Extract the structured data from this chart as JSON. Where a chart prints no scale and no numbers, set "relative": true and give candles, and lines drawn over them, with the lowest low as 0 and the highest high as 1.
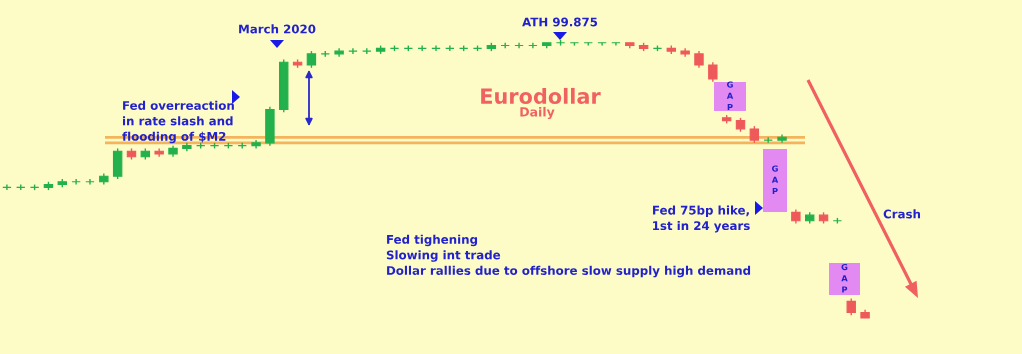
{
  "chart_data": {
    "type": "candlestick",
    "title": "Eurodollar",
    "subtitle": "Daily",
    "relative": true,
    "categories": [
      null,
      null,
      null,
      null,
      null,
      null,
      null,
      null,
      null,
      null,
      null,
      null,
      null,
      null,
      null,
      null,
      null,
      null,
      null,
      null,
      null,
      null,
      null,
      null,
      null,
      null,
      null,
      null,
      null,
      null,
      null,
      null,
      null,
      null,
      null,
      null,
      null,
      null,
      null,
      null,
      null,
      null,
      null,
      null,
      null,
      null,
      null,
      null,
      null,
      null,
      null,
      null,
      null,
      null,
      null,
      null,
      null,
      null,
      null,
      null,
      null,
      null,
      null
    ],
    "colors": [
      "#22b14c",
      "#22b14c",
      "#22b14c",
      "#22b14c",
      "#22b14c",
      "#22b14c",
      "#22b14c",
      "#22b14c",
      "#22b14c",
      "#ee5a5a",
      "#22b14c",
      "#ee5a5a",
      "#22b14c",
      "#22b14c",
      "#22b14c",
      "#22b14c",
      "#22b14c",
      "#22b14c",
      "#22b14c",
      "#22b14c",
      "#22b14c",
      "#ee5a5a",
      "#22b14c",
      "#22b14c",
      "#22b14c",
      "#22b14c",
      "#22b14c",
      "#22b14c",
      "#22b14c",
      "#22b14c",
      "#22b14c",
      "#22b14c",
      "#22b14c",
      "#22b14c",
      "#22b14c",
      "#22b14c",
      "#22b14c",
      "#22b14c",
      "#22b14c",
      "#22b14c",
      "#22b14c",
      "#22b14c",
      "#22b14c",
      "#22b14c",
      "#22b14c",
      "#ee5a5a",
      "#ee5a5a",
      "#22b14c",
      "#ee5a5a",
      "#ee5a5a",
      "#ee5a5a",
      "#ee5a5a",
      "#ee5a5a",
      "#ee5a5a",
      "#ee5a5a",
      "#22b14c",
      "#22b14c",
      "#ee5a5a",
      "#22b14c",
      "#ee5a5a",
      "#22b14c",
      "#ee5a5a",
      "#ee5a5a"
    ],
    "ohlc": [
      [
        0.47,
        0.48,
        0.46,
        0.47
      ],
      [
        0.47,
        0.48,
        0.46,
        0.47
      ],
      [
        0.47,
        0.48,
        0.46,
        0.47
      ],
      [
        0.47,
        0.49,
        0.46,
        0.48
      ],
      [
        0.48,
        0.5,
        0.47,
        0.49
      ],
      [
        0.49,
        0.5,
        0.48,
        0.49
      ],
      [
        0.49,
        0.5,
        0.48,
        0.49
      ],
      [
        0.49,
        0.52,
        0.48,
        0.51
      ],
      [
        0.51,
        0.61,
        0.5,
        0.6
      ],
      [
        0.6,
        0.61,
        0.57,
        0.58
      ],
      [
        0.58,
        0.61,
        0.57,
        0.6
      ],
      [
        0.6,
        0.61,
        0.58,
        0.59
      ],
      [
        0.59,
        0.62,
        0.58,
        0.61
      ],
      [
        0.61,
        0.63,
        0.6,
        0.62
      ],
      [
        0.62,
        0.63,
        0.61,
        0.62
      ],
      [
        0.62,
        0.63,
        0.61,
        0.62
      ],
      [
        0.62,
        0.63,
        0.61,
        0.62
      ],
      [
        0.62,
        0.63,
        0.61,
        0.62
      ],
      [
        0.62,
        0.64,
        0.61,
        0.63
      ],
      [
        0.63,
        0.76,
        0.62,
        0.75
      ],
      [
        0.75,
        0.93,
        0.74,
        0.92
      ],
      [
        0.92,
        0.93,
        0.9,
        0.91
      ],
      [
        0.91,
        0.96,
        0.9,
        0.95
      ],
      [
        0.95,
        0.96,
        0.94,
        0.95
      ],
      [
        0.95,
        0.97,
        0.94,
        0.96
      ],
      [
        0.96,
        0.97,
        0.95,
        0.96
      ],
      [
        0.96,
        0.97,
        0.95,
        0.96
      ],
      [
        0.96,
        0.98,
        0.95,
        0.97
      ],
      [
        0.97,
        0.98,
        0.96,
        0.97
      ],
      [
        0.97,
        0.98,
        0.96,
        0.97
      ],
      [
        0.97,
        0.98,
        0.96,
        0.97
      ],
      [
        0.97,
        0.98,
        0.96,
        0.97
      ],
      [
        0.97,
        0.98,
        0.96,
        0.97
      ],
      [
        0.97,
        0.98,
        0.96,
        0.97
      ],
      [
        0.97,
        0.98,
        0.96,
        0.97
      ],
      [
        0.97,
        0.99,
        0.96,
        0.98
      ],
      [
        0.98,
        0.99,
        0.97,
        0.98
      ],
      [
        0.98,
        0.99,
        0.97,
        0.98
      ],
      [
        0.98,
        0.99,
        0.97,
        0.98
      ],
      [
        0.98,
        0.99,
        0.97,
        0.99
      ],
      [
        0.99,
        1.0,
        0.98,
        0.99
      ],
      [
        0.99,
        0.99,
        0.98,
        0.99
      ],
      [
        0.99,
        0.99,
        0.98,
        0.99
      ],
      [
        0.99,
        0.99,
        0.98,
        0.99
      ],
      [
        0.99,
        0.99,
        0.98,
        0.99
      ],
      [
        0.99,
        0.99,
        0.97,
        0.98
      ],
      [
        0.98,
        0.99,
        0.96,
        0.97
      ],
      [
        0.97,
        0.98,
        0.96,
        0.97
      ],
      [
        0.97,
        0.98,
        0.95,
        0.96
      ],
      [
        0.96,
        0.97,
        0.94,
        0.95
      ],
      [
        0.95,
        0.96,
        0.9,
        0.91
      ],
      [
        0.91,
        0.92,
        0.85,
        0.86
      ],
      [
        0.72,
        0.73,
        0.7,
        0.71
      ],
      [
        0.71,
        0.72,
        0.67,
        0.68
      ],
      [
        0.68,
        0.69,
        0.63,
        0.64
      ],
      [
        0.64,
        0.65,
        0.63,
        0.64
      ],
      [
        0.64,
        0.66,
        0.63,
        0.65
      ],
      [
        0.38,
        0.39,
        0.34,
        0.35
      ],
      [
        0.35,
        0.38,
        0.34,
        0.37
      ],
      [
        0.37,
        0.38,
        0.34,
        0.35
      ],
      [
        0.35,
        0.36,
        0.34,
        0.35
      ],
      [
        0.06,
        0.07,
        0.01,
        0.02
      ],
      [
        0.02,
        0.03,
        0.0,
        0.0
      ]
    ],
    "ref_lines": [
      {
        "axis": "y",
        "value": 0.65,
        "color": "#f5b35c"
      },
      {
        "axis": "y",
        "value": 0.63,
        "color": "#f5b35c"
      }
    ],
    "annotations": [
      "March 2020",
      "ATH 99.875",
      "Fed overreaction\nin rate slash and\nflooding of $M2",
      "Fed tighening\nSlowing int trade\nDollar rallies due to offshore slow supply high demand",
      "Fed 75bp hike,\n1st in 24 years",
      "GAP",
      "GAP",
      "GAP",
      "Crash"
    ]
  }
}
